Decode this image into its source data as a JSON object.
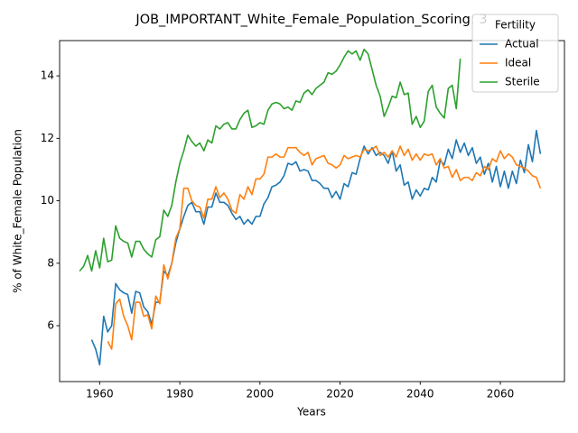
{
  "chart_data": {
    "type": "line",
    "title": "JOB_IMPORTANT_White_Female_Population_Scoring: 3",
    "xlabel": "Years",
    "ylabel": "% of White_Female Population",
    "legend_title": "Fertility",
    "legend": "upper right",
    "grid": false,
    "xlim": [
      1950,
      2076
    ],
    "ylim": [
      4.21,
      15.13
    ],
    "xticks": [
      1960,
      1980,
      2000,
      2020,
      2040,
      2060
    ],
    "yticks": [
      6,
      8,
      10,
      12,
      14
    ],
    "x": [
      1955,
      1956,
      1957,
      1958,
      1959,
      1960,
      1961,
      1962,
      1963,
      1964,
      1965,
      1966,
      1967,
      1968,
      1969,
      1970,
      1971,
      1972,
      1973,
      1974,
      1975,
      1976,
      1977,
      1978,
      1979,
      1980,
      1981,
      1982,
      1983,
      1984,
      1985,
      1986,
      1987,
      1988,
      1989,
      1990,
      1991,
      1992,
      1993,
      1994,
      1995,
      1996,
      1997,
      1998,
      1999,
      2000,
      2001,
      2002,
      2003,
      2004,
      2005,
      2006,
      2007,
      2008,
      2009,
      2010,
      2011,
      2012,
      2013,
      2014,
      2015,
      2016,
      2017,
      2018,
      2019,
      2020,
      2021,
      2022,
      2023,
      2024,
      2025,
      2026,
      2027,
      2028,
      2029,
      2030,
      2031,
      2032,
      2033,
      2034,
      2035,
      2036,
      2037,
      2038,
      2039,
      2040,
      2041,
      2042,
      2043,
      2044,
      2045,
      2046,
      2047,
      2048,
      2049,
      2050,
      2051,
      2052,
      2053,
      2054,
      2055,
      2056,
      2057,
      2058,
      2059,
      2060,
      2061,
      2062,
      2063,
      2064,
      2065,
      2066,
      2067,
      2068,
      2069,
      2070
    ],
    "series": [
      {
        "name": "Actual",
        "color": "#1f77b4",
        "values": [
          null,
          null,
          null,
          5.55,
          5.25,
          4.75,
          6.3,
          5.8,
          6.0,
          7.35,
          7.15,
          7.05,
          7.0,
          6.4,
          7.1,
          7.05,
          6.6,
          6.45,
          6.05,
          6.75,
          6.75,
          7.75,
          7.6,
          8.0,
          8.65,
          9.1,
          9.5,
          9.85,
          9.95,
          9.65,
          9.65,
          9.25,
          9.8,
          9.8,
          10.25,
          9.95,
          9.95,
          9.85,
          9.6,
          9.4,
          9.5,
          9.25,
          9.4,
          9.25,
          9.5,
          9.5,
          9.9,
          10.1,
          10.45,
          10.5,
          10.6,
          10.8,
          11.2,
          11.15,
          11.25,
          10.95,
          11.0,
          10.95,
          10.65,
          10.65,
          10.55,
          10.4,
          10.4,
          10.1,
          10.3,
          10.05,
          10.55,
          10.45,
          10.9,
          10.85,
          11.35,
          11.75,
          11.5,
          11.7,
          11.45,
          11.55,
          11.45,
          11.2,
          11.6,
          10.95,
          11.15,
          10.5,
          10.6,
          10.05,
          10.35,
          10.15,
          10.4,
          10.35,
          10.75,
          10.6,
          11.3,
          11.15,
          11.65,
          11.35,
          11.95,
          11.55,
          11.85,
          11.45,
          11.7,
          11.2,
          11.4,
          10.85,
          11.2,
          10.6,
          11.1,
          10.45,
          10.95,
          10.4,
          10.95,
          10.55,
          11.3,
          10.9,
          11.8,
          11.25,
          12.25,
          11.5
        ]
      },
      {
        "name": "Ideal",
        "color": "#ff7f0e",
        "values": [
          null,
          null,
          null,
          null,
          null,
          null,
          null,
          5.5,
          5.25,
          6.7,
          6.85,
          6.3,
          6.0,
          5.55,
          6.75,
          6.75,
          6.3,
          6.35,
          5.9,
          6.95,
          6.7,
          7.95,
          7.5,
          8.0,
          8.8,
          9.1,
          10.4,
          10.4,
          10.0,
          9.85,
          9.8,
          9.45,
          10.05,
          10.05,
          10.45,
          10.1,
          10.25,
          10.05,
          9.7,
          9.6,
          10.2,
          10.05,
          10.45,
          10.2,
          10.7,
          10.7,
          10.85,
          11.4,
          11.4,
          11.5,
          11.4,
          11.4,
          11.7,
          11.7,
          11.7,
          11.55,
          11.45,
          11.55,
          11.15,
          11.35,
          11.4,
          11.45,
          11.2,
          11.15,
          11.05,
          11.15,
          11.45,
          11.35,
          11.4,
          11.45,
          11.4,
          11.65,
          11.6,
          11.65,
          11.75,
          11.45,
          11.55,
          11.4,
          11.6,
          11.4,
          11.75,
          11.45,
          11.65,
          11.3,
          11.5,
          11.3,
          11.5,
          11.45,
          11.5,
          11.15,
          11.35,
          11.05,
          11.1,
          10.75,
          11.0,
          10.65,
          10.75,
          10.75,
          10.65,
          10.9,
          10.8,
          11.1,
          11.0,
          11.35,
          11.25,
          11.6,
          11.35,
          11.5,
          11.4,
          11.15,
          11.1,
          11.05,
          10.95,
          10.8,
          10.75,
          10.4
        ]
      },
      {
        "name": "Sterile",
        "color": "#2ca02c",
        "values": [
          7.75,
          7.9,
          8.25,
          7.75,
          8.4,
          7.85,
          8.8,
          8.05,
          8.1,
          9.2,
          8.8,
          8.7,
          8.65,
          8.2,
          8.7,
          8.7,
          8.45,
          8.3,
          8.2,
          8.75,
          8.85,
          9.7,
          9.5,
          9.85,
          10.6,
          11.2,
          11.6,
          12.1,
          11.9,
          11.75,
          11.85,
          11.6,
          11.95,
          11.85,
          12.4,
          12.3,
          12.45,
          12.5,
          12.3,
          12.3,
          12.6,
          12.8,
          12.9,
          12.35,
          12.4,
          12.5,
          12.45,
          12.9,
          13.1,
          13.15,
          13.1,
          12.95,
          13.0,
          12.9,
          13.2,
          13.15,
          13.45,
          13.55,
          13.4,
          13.6,
          13.7,
          13.8,
          14.1,
          14.05,
          14.15,
          14.35,
          14.6,
          14.8,
          14.7,
          14.8,
          14.5,
          14.85,
          14.7,
          14.2,
          13.7,
          13.35,
          12.7,
          13.0,
          13.35,
          13.3,
          13.8,
          13.4,
          13.45,
          12.45,
          12.7,
          12.35,
          12.55,
          13.5,
          13.7,
          13.0,
          12.8,
          12.65,
          13.6,
          13.7,
          12.95,
          14.55,
          null,
          null,
          null,
          null,
          null,
          null,
          null,
          null,
          null,
          null,
          null,
          null,
          null,
          null,
          null,
          null,
          null,
          null,
          null,
          null
        ]
      }
    ]
  }
}
